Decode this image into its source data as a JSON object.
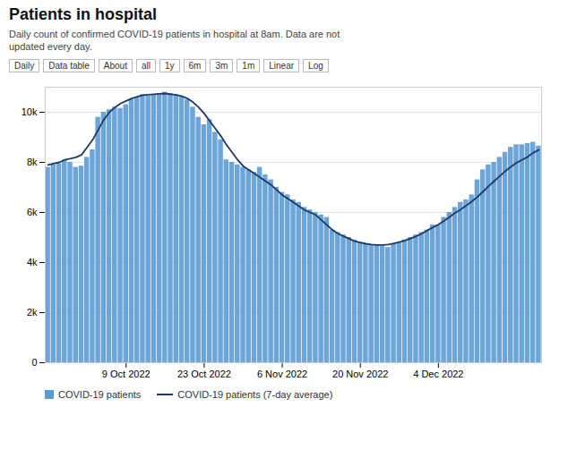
{
  "chart_data": {
    "type": "bar",
    "title": "Patients in hospital",
    "subtitle": "Daily count of confirmed COVID-19 patients in hospital at 8am. Data are not\nupdated every day.",
    "annotations": [
      "Daily",
      "Data table",
      "About",
      "all",
      "1y",
      "6m",
      "3m",
      "1m",
      "Linear",
      "Log"
    ],
    "categories": [
      null,
      null,
      null,
      null,
      null,
      null,
      null,
      null,
      null,
      null,
      null,
      null,
      null,
      null,
      "9 Oct 2022",
      null,
      null,
      null,
      null,
      null,
      null,
      null,
      null,
      null,
      null,
      null,
      null,
      null,
      "23 Oct 2022",
      null,
      null,
      null,
      null,
      null,
      null,
      null,
      null,
      null,
      null,
      null,
      null,
      null,
      "6 Nov 2022",
      null,
      null,
      null,
      null,
      null,
      null,
      null,
      null,
      null,
      null,
      null,
      null,
      null,
      "20 Nov 2022",
      null,
      null,
      null,
      null,
      null,
      null,
      null,
      null,
      null,
      null,
      null,
      null,
      null,
      "4 Dec 2022",
      null,
      null,
      null,
      null,
      null,
      null,
      null,
      null,
      null,
      null,
      null,
      null,
      null,
      null,
      null,
      null,
      null,
      null
    ],
    "series": [
      {
        "name": "COVID-19 patients",
        "type": "bar",
        "color": "#5b9bd5",
        "values": [
          7800,
          7900,
          7950,
          8100,
          8000,
          7800,
          7850,
          8200,
          8500,
          9800,
          10000,
          10100,
          10200,
          10150,
          10300,
          10500,
          10600,
          10700,
          10650,
          10700,
          10750,
          10800,
          10750,
          10700,
          10600,
          10500,
          10200,
          9800,
          9500,
          9700,
          9200,
          8900,
          8100,
          8000,
          7900,
          7800,
          7700,
          7600,
          7800,
          7500,
          7300,
          7000,
          6800,
          6700,
          6500,
          6400,
          6200,
          6100,
          6000,
          5900,
          5800,
          5300,
          5200,
          5100,
          5000,
          4900,
          4800,
          4750,
          4700,
          4700,
          4650,
          4600,
          4750,
          4800,
          4900,
          5000,
          5100,
          5200,
          5300,
          5500,
          5500,
          5800,
          6000,
          6200,
          6400,
          6500,
          6700,
          7300,
          7700,
          7900,
          8000,
          8200,
          8400,
          8600,
          8700,
          8700,
          8750,
          8800,
          8650
        ]
      },
      {
        "name": "COVID-19 patients (7-day average)",
        "type": "line",
        "color": "#1f3864",
        "values": [
          7900,
          7950,
          8000,
          8100,
          8150,
          8200,
          8300,
          8600,
          8900,
          9300,
          9700,
          10000,
          10200,
          10350,
          10450,
          10550,
          10620,
          10680,
          10700,
          10720,
          10740,
          10750,
          10720,
          10690,
          10640,
          10550,
          10400,
          10200,
          9950,
          9650,
          9350,
          9050,
          8700,
          8400,
          8100,
          7850,
          7700,
          7550,
          7400,
          7250,
          7100,
          6900,
          6700,
          6550,
          6400,
          6250,
          6100,
          6000,
          5900,
          5700,
          5500,
          5300,
          5150,
          5050,
          4950,
          4850,
          4800,
          4750,
          4720,
          4700,
          4700,
          4720,
          4760,
          4820,
          4880,
          4960,
          5050,
          5150,
          5280,
          5400,
          5520,
          5660,
          5820,
          5980,
          6120,
          6280,
          6440,
          6620,
          6830,
          7050,
          7250,
          7450,
          7650,
          7820,
          7980,
          8100,
          8220,
          8380,
          8500
        ]
      }
    ],
    "ylim": [
      0,
      11000
    ],
    "yticks": [
      0,
      {
        "value": 2000,
        "label": "2k"
      },
      {
        "value": 4000,
        "label": "4k"
      },
      {
        "value": 6000,
        "label": "6k"
      },
      {
        "value": 8000,
        "label": "8k"
      },
      {
        "value": 10000,
        "label": "10k"
      }
    ],
    "grid": true
  }
}
